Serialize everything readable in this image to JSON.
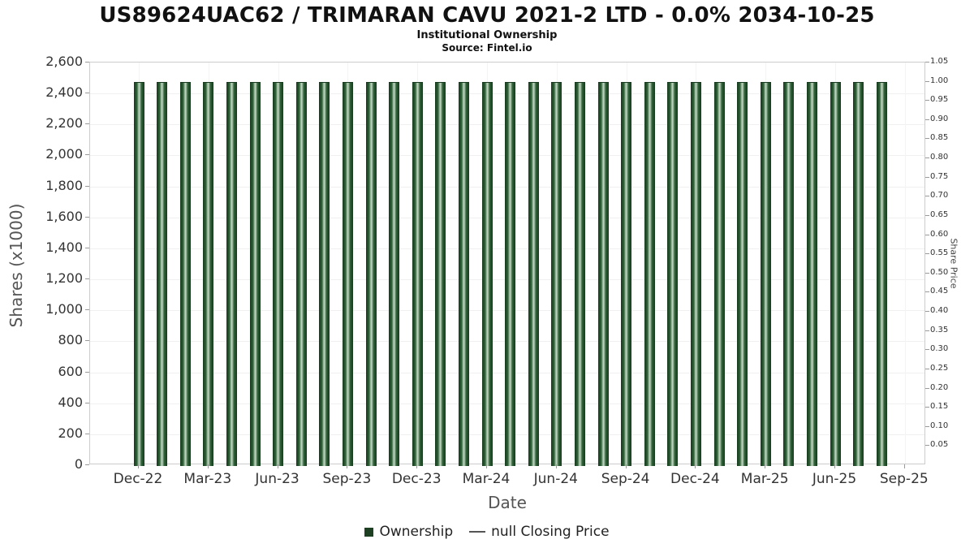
{
  "header": {
    "title": "US89624UAC62 / TRIMARAN CAVU 2021-2 LTD - 0.0% 2034-10-25",
    "subtitle": "Institutional Ownership",
    "source": "Source: Fintel.io"
  },
  "chart_data": {
    "type": "bar",
    "title": "US89624UAC62 / TRIMARAN CAVU 2021-2 LTD - 0.0% 2034-10-25",
    "subtitle": "Institutional Ownership",
    "source": "Source: Fintel.io",
    "xlabel": "Date",
    "ylabel_left": "Shares (x1000)",
    "ylabel_right": "Share Price",
    "categories": [
      "Dec-22",
      "Jan-23",
      "Feb-23",
      "Mar-23",
      "Apr-23",
      "May-23",
      "Jun-23",
      "Jul-23",
      "Aug-23",
      "Sep-23",
      "Oct-23",
      "Nov-23",
      "Dec-23",
      "Jan-24",
      "Feb-24",
      "Mar-24",
      "Apr-24",
      "May-24",
      "Jun-24",
      "Jul-24",
      "Aug-24",
      "Sep-24",
      "Oct-24",
      "Nov-24",
      "Dec-24",
      "Jan-25",
      "Feb-25",
      "Mar-25",
      "Apr-25",
      "May-25",
      "Jun-25",
      "Jul-25",
      "Aug-25"
    ],
    "series": [
      {
        "name": "Ownership",
        "values": [
          2475,
          2475,
          2475,
          2475,
          2475,
          2475,
          2475,
          2475,
          2475,
          2475,
          2475,
          2475,
          2475,
          2475,
          2475,
          2475,
          2475,
          2475,
          2475,
          2475,
          2475,
          2475,
          2475,
          2475,
          2475,
          2475,
          2475,
          2475,
          2475,
          2475,
          2475,
          2475,
          2475
        ]
      },
      {
        "name": "null Closing Price",
        "values": []
      }
    ],
    "x_tick_labels": [
      "Dec-22",
      "Mar-23",
      "Jun-23",
      "Sep-23",
      "Dec-23",
      "Mar-24",
      "Jun-24",
      "Sep-24",
      "Dec-24",
      "Mar-25",
      "Jun-25",
      "Sep-25"
    ],
    "y_left_axis": {
      "min": 0,
      "max": 2600,
      "step": 200
    },
    "y_right_axis": {
      "min": 0,
      "max": 1.05,
      "step": 0.05,
      "first_labeled": 0.05
    },
    "grid": true,
    "legend_position": "bottom",
    "legend": [
      {
        "label": "Ownership",
        "marker": "square"
      },
      {
        "label": "null Closing Price",
        "marker": "line"
      }
    ]
  },
  "colors": {
    "bar_dark": "#16391d",
    "bar_mid": "#2e6136",
    "bar_light": "#c9dcc9",
    "legend_square": "#1d4023",
    "line_marker": "#555555",
    "tick_text": "#333333",
    "axis_title": "#555555"
  }
}
